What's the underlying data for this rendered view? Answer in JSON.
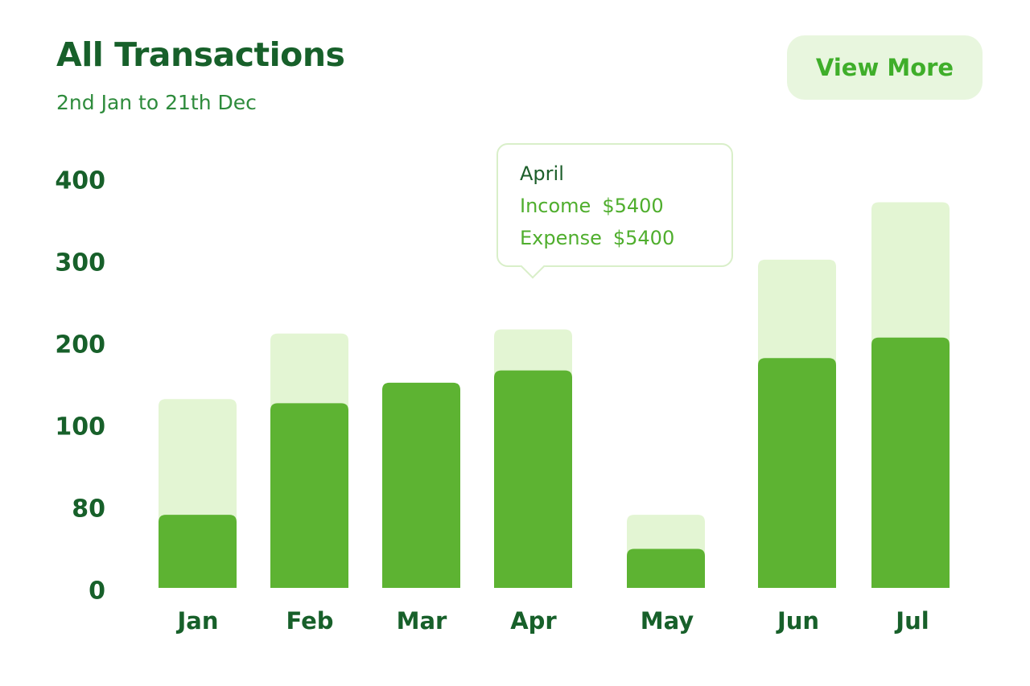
{
  "header": {
    "title": "All Transactions",
    "subtitle": "2nd Jan to 21th Dec",
    "view_more_label": "View More"
  },
  "tooltip": {
    "title": "April",
    "income_label": "Income",
    "income_value": "$5400",
    "expense_label": "Expense",
    "expense_value": "$5400"
  },
  "colors": {
    "primary": "#5db332",
    "light": "#e3f5d3",
    "heading": "#17602a",
    "accent": "#3fae2a"
  },
  "chart_data": {
    "type": "bar",
    "stacked": true,
    "categories": [
      "Jan",
      "Feb",
      "Mar",
      "Apr",
      "May",
      "Jun",
      "Jul"
    ],
    "y_ticks": [
      "0",
      "80",
      "100",
      "200",
      "300",
      "400"
    ],
    "series": [
      {
        "values": [
          75,
          130,
          155,
          170,
          40,
          185,
          210
        ]
      },
      {
        "values": [
          60,
          85,
          0,
          50,
          35,
          120,
          165
        ]
      }
    ],
    "title": "All Transactions",
    "xlabel": "",
    "ylabel": "",
    "grid": false,
    "legend": "none"
  }
}
